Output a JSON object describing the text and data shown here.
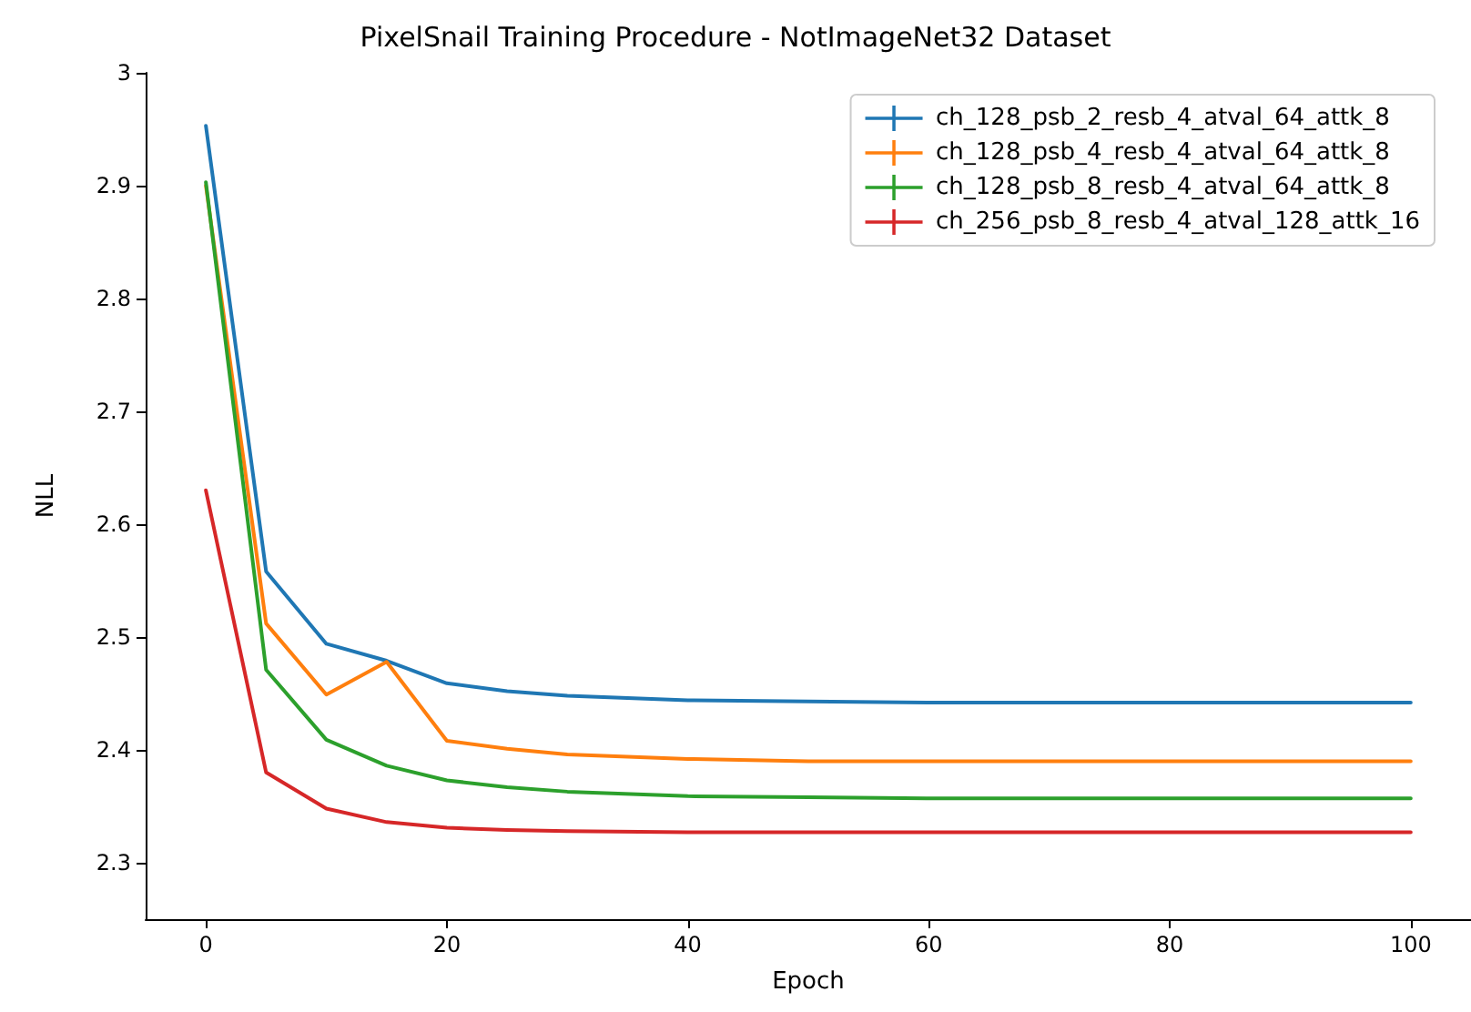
{
  "chart_data": {
    "type": "line",
    "title": "PixelSnail Training Procedure - NotImageNet32 Dataset",
    "xlabel": "Epoch",
    "ylabel": "NLL",
    "x": [
      0,
      5,
      10,
      15,
      20,
      25,
      30,
      40,
      50,
      60,
      70,
      80,
      90,
      100
    ],
    "series": [
      {
        "name": "ch_128_psb_2_resb_4_atval_64_attk_8",
        "color": "#1f77b4",
        "values": [
          2.953,
          2.558,
          2.494,
          2.479,
          2.459,
          2.452,
          2.448,
          2.444,
          2.443,
          2.442,
          2.442,
          2.442,
          2.442,
          2.442
        ]
      },
      {
        "name": "ch_128_psb_4_resb_4_atval_64_attk_8",
        "color": "#ff7f0e",
        "values": [
          2.9,
          2.512,
          2.449,
          2.478,
          2.408,
          2.401,
          2.396,
          2.392,
          2.39,
          2.39,
          2.39,
          2.39,
          2.39,
          2.39
        ]
      },
      {
        "name": "ch_128_psb_8_resb_4_atval_64_attk_8",
        "color": "#2ca02c",
        "values": [
          2.903,
          2.471,
          2.409,
          2.386,
          2.373,
          2.367,
          2.363,
          2.359,
          2.358,
          2.357,
          2.357,
          2.357,
          2.357,
          2.357
        ]
      },
      {
        "name": "ch_256_psb_8_resb_4_atval_128_attk_16",
        "color": "#d62728",
        "values": [
          2.63,
          2.38,
          2.348,
          2.336,
          2.331,
          2.329,
          2.328,
          2.327,
          2.327,
          2.327,
          2.327,
          2.327,
          2.327,
          2.327
        ]
      }
    ],
    "xlim": [
      -5,
      105
    ],
    "xticks": [
      0,
      20,
      40,
      60,
      80,
      100
    ],
    "ylim": [
      2.25,
      3.0
    ],
    "yticks": [
      2.3,
      2.4,
      2.5,
      2.6,
      2.7,
      2.8,
      2.9,
      3.0
    ],
    "grid": false,
    "legend": "top right",
    "marker": "none",
    "line_style": "solid"
  }
}
